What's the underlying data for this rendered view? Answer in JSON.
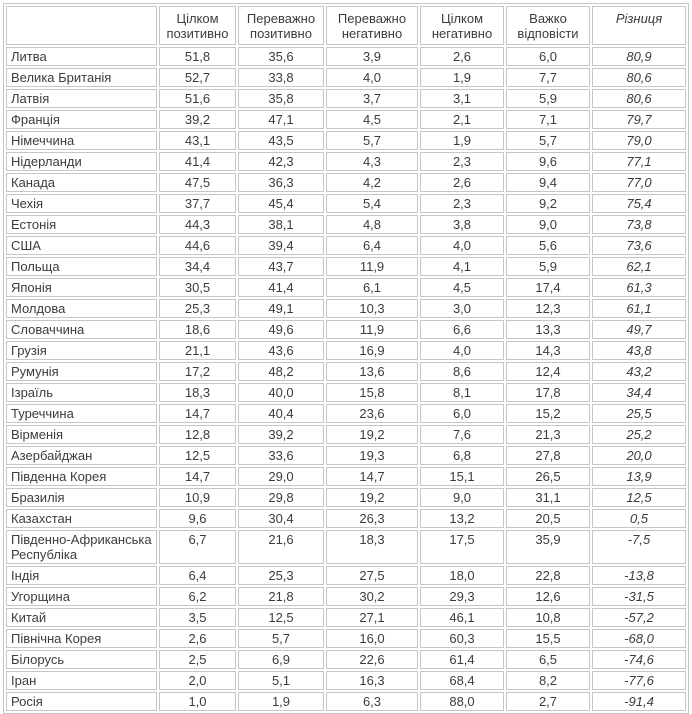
{
  "chart_data": {
    "type": "table",
    "title": "",
    "columns": [
      "",
      "Цілком позитивно",
      "Переважно позитивно",
      "Переважно негативно",
      "Цілком негативно",
      "Важко відповісти",
      "Різниця"
    ],
    "rows": [
      [
        "Литва",
        "51,8",
        "35,6",
        "3,9",
        "2,6",
        "6,0",
        "80,9"
      ],
      [
        "Велика Британія",
        "52,7",
        "33,8",
        "4,0",
        "1,9",
        "7,7",
        "80,6"
      ],
      [
        "Латвія",
        "51,6",
        "35,8",
        "3,7",
        "3,1",
        "5,9",
        "80,6"
      ],
      [
        "Франція",
        "39,2",
        "47,1",
        "4,5",
        "2,1",
        "7,1",
        "79,7"
      ],
      [
        "Німеччина",
        "43,1",
        "43,5",
        "5,7",
        "1,9",
        "5,7",
        "79,0"
      ],
      [
        "Нідерланди",
        "41,4",
        "42,3",
        "4,3",
        "2,3",
        "9,6",
        "77,1"
      ],
      [
        "Канада",
        "47,5",
        "36,3",
        "4,2",
        "2,6",
        "9,4",
        "77,0"
      ],
      [
        "Чехія",
        "37,7",
        "45,4",
        "5,4",
        "2,3",
        "9,2",
        "75,4"
      ],
      [
        "Естонія",
        "44,3",
        "38,1",
        "4,8",
        "3,8",
        "9,0",
        "73,8"
      ],
      [
        "США",
        "44,6",
        "39,4",
        "6,4",
        "4,0",
        "5,6",
        "73,6"
      ],
      [
        "Польща",
        "34,4",
        "43,7",
        "11,9",
        "4,1",
        "5,9",
        "62,1"
      ],
      [
        "Японія",
        "30,5",
        "41,4",
        "6,1",
        "4,5",
        "17,4",
        "61,3"
      ],
      [
        "Молдова",
        "25,3",
        "49,1",
        "10,3",
        "3,0",
        "12,3",
        "61,1"
      ],
      [
        "Словаччина",
        "18,6",
        "49,6",
        "11,9",
        "6,6",
        "13,3",
        "49,7"
      ],
      [
        "Грузія",
        "21,1",
        "43,6",
        "16,9",
        "4,0",
        "14,3",
        "43,8"
      ],
      [
        "Румунія",
        "17,2",
        "48,2",
        "13,6",
        "8,6",
        "12,4",
        "43,2"
      ],
      [
        "Ізраїль",
        "18,3",
        "40,0",
        "15,8",
        "8,1",
        "17,8",
        "34,4"
      ],
      [
        "Туреччина",
        "14,7",
        "40,4",
        "23,6",
        "6,0",
        "15,2",
        "25,5"
      ],
      [
        "Вірменія",
        "12,8",
        "39,2",
        "19,2",
        "7,6",
        "21,3",
        "25,2"
      ],
      [
        "Азербайджан",
        "12,5",
        "33,6",
        "19,3",
        "6,8",
        "27,8",
        "20,0"
      ],
      [
        "Південна Корея",
        "14,7",
        "29,0",
        "14,7",
        "15,1",
        "26,5",
        "13,9"
      ],
      [
        "Бразилія",
        "10,9",
        "29,8",
        "19,2",
        "9,0",
        "31,1",
        "12,5"
      ],
      [
        "Казахстан",
        "9,6",
        "30,4",
        "26,3",
        "13,2",
        "20,5",
        "0,5"
      ],
      [
        "Південно-Африканська Республіка",
        "6,7",
        "21,6",
        "18,3",
        "17,5",
        "35,9",
        "-7,5"
      ],
      [
        "Індія",
        "6,4",
        "25,3",
        "27,5",
        "18,0",
        "22,8",
        "-13,8"
      ],
      [
        "Угорщина",
        "6,2",
        "21,8",
        "30,2",
        "29,3",
        "12,6",
        "-31,5"
      ],
      [
        "Китай",
        "3,5",
        "12,5",
        "27,1",
        "46,1",
        "10,8",
        "-57,2"
      ],
      [
        "Північна Корея",
        "2,6",
        "5,7",
        "16,0",
        "60,3",
        "15,5",
        "-68,0"
      ],
      [
        "Білорусь",
        "2,5",
        "6,9",
        "22,6",
        "61,4",
        "6,5",
        "-74,6"
      ],
      [
        "Іран",
        "2,0",
        "5,1",
        "16,3",
        "68,4",
        "8,2",
        "-77,6"
      ],
      [
        "Росія",
        "1,0",
        "1,9",
        "6,3",
        "88,0",
        "2,7",
        "-91,4"
      ]
    ],
    "layout_hints": {
      "difference_column_italic": true,
      "country_column_align": "left",
      "value_columns_align": "center",
      "grid": true
    }
  },
  "colors": {
    "border": "#c6c6c6",
    "text": "#3c3c3c",
    "background": "#ffffff"
  }
}
